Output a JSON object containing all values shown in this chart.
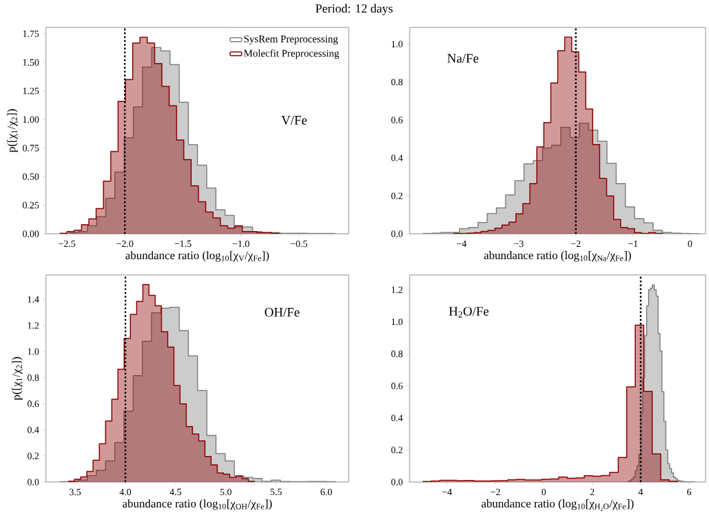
{
  "chart_data": [
    {
      "type": "step",
      "title": "Period: 12 days",
      "xlabel": "abundance ratio (log$_{10}$[χ$_{V}$/χ$_{Fe}$])",
      "ylabel": "p([χ$_{1}$/χ$_{2}$])",
      "xlim": [
        -2.681,
        -0.071
      ],
      "ylim": [
        0,
        1.806
      ],
      "xticks": [
        {
          "value": -2.5,
          "label": "−2.5"
        },
        {
          "value": -2,
          "label": "−2.0"
        },
        {
          "value": -1.5,
          "label": "−1.5"
        },
        {
          "value": -1,
          "label": "−1.0"
        },
        {
          "value": -0.5,
          "label": "−0.5"
        }
      ],
      "yticks": [
        {
          "value": 0,
          "label": "0.00"
        },
        {
          "value": 0.25,
          "label": "0.25"
        },
        {
          "value": 0.5,
          "label": "0.50"
        },
        {
          "value": 0.75,
          "label": "0.75"
        },
        {
          "value": 1,
          "label": "1.00"
        },
        {
          "value": 1.25,
          "label": "1.25"
        },
        {
          "value": 1.5,
          "label": "1.50"
        },
        {
          "value": 1.75,
          "label": "1.75"
        }
      ],
      "legend": "top right",
      "series": [
        {
          "name": "SysRem Preprocessing",
          "color": "#808080",
          "x": [
            -2.481,
            -2.402,
            -2.323,
            -2.244,
            -2.165,
            -2.086,
            -2.006,
            -1.927,
            -1.848,
            -1.769,
            -1.69,
            -1.611,
            -1.532,
            -1.453,
            -1.374,
            -1.295,
            -1.216,
            -1.137,
            -1.058,
            -0.979,
            -0.9,
            -0.82,
            -0.741,
            -0.662,
            -0.583,
            -0.504,
            -0.425,
            -0.346,
            -0.267,
            -0.188
          ],
          "values": [
            0.01,
            0.02,
            0.07,
            0.15,
            0.31,
            0.54,
            0.84,
            1.11,
            1.46,
            1.63,
            1.6,
            1.48,
            1.15,
            0.78,
            0.6,
            0.4,
            0.21,
            0.16,
            0.06,
            0.06,
            0.02,
            0.01,
            0.01,
            0.005,
            0.005,
            0.005,
            0.003,
            0.003,
            0.003,
            0
          ]
        },
        {
          "name": "Molecfit Preprocessing",
          "color": "#8b0000",
          "x": [
            -2.563,
            -2.5,
            -2.437,
            -2.374,
            -2.311,
            -2.248,
            -2.185,
            -2.122,
            -2.059,
            -1.996,
            -1.933,
            -1.87,
            -1.807,
            -1.744,
            -1.681,
            -1.618,
            -1.555,
            -1.492,
            -1.429,
            -1.366,
            -1.303,
            -1.24,
            -1.177,
            -1.114,
            -1.051,
            -0.988,
            -0.925,
            -0.862,
            -0.799,
            -0.736,
            -0.673
          ],
          "values": [
            0.004,
            0.02,
            0.032,
            0.08,
            0.13,
            0.22,
            0.46,
            0.72,
            1.16,
            1.35,
            1.67,
            1.72,
            1.67,
            1.49,
            1.29,
            1.12,
            0.82,
            0.65,
            0.42,
            0.28,
            0.19,
            0.14,
            0.07,
            0.05,
            0.07,
            0.02,
            0.02,
            0.01,
            0.01,
            0.004,
            0
          ]
        }
      ],
      "ref_lines": [
        {
          "axis": "x",
          "value": -2,
          "color": "#000000",
          "line_style": "dotted"
        }
      ],
      "annotations": [
        "V/Fe"
      ]
    },
    {
      "type": "step",
      "xlabel": "abundance ratio (log$_{10}$[χ$_{Na}$/χ$_{Fe}$])",
      "xlim": [
        -4.908,
        0.272
      ],
      "ylim": [
        0,
        1.088
      ],
      "xticks": [
        {
          "value": -4,
          "label": "−4"
        },
        {
          "value": -3,
          "label": "−3"
        },
        {
          "value": -2,
          "label": "−2"
        },
        {
          "value": -1,
          "label": "−1"
        },
        {
          "value": 0,
          "label": "0"
        }
      ],
      "yticks": [
        {
          "value": 0,
          "label": "0.0"
        },
        {
          "value": 0.2,
          "label": "0.2"
        },
        {
          "value": 0.4,
          "label": "0.4"
        },
        {
          "value": 0.6,
          "label": "0.6"
        },
        {
          "value": 0.8,
          "label": "0.8"
        },
        {
          "value": 1,
          "label": "1.0"
        }
      ],
      "series": [
        {
          "color": "#808080",
          "x": [
            -4.68,
            -4.519,
            -4.357,
            -4.196,
            -4.035,
            -3.874,
            -3.712,
            -3.551,
            -3.39,
            -3.228,
            -3.067,
            -2.906,
            -2.744,
            -2.583,
            -2.422,
            -2.261,
            -2.099,
            -1.938,
            -1.777,
            -1.615,
            -1.454,
            -1.293,
            -1.131,
            -0.97,
            -0.809,
            -0.648,
            -0.486,
            -0.325,
            -0.164,
            -0.002,
            0.159
          ],
          "values": [
            0.002,
            0.004,
            0.007,
            0.007,
            0.027,
            0.033,
            0.06,
            0.107,
            0.136,
            0.205,
            0.28,
            0.369,
            0.386,
            0.453,
            0.467,
            0.561,
            0.508,
            0.584,
            0.547,
            0.488,
            0.371,
            0.265,
            0.142,
            0.08,
            0.058,
            0.019,
            0.007,
            0.004,
            0.002,
            0.001,
            0
          ]
        },
        {
          "color": "#8b0000",
          "x": [
            -4.148,
            -4.026,
            -3.904,
            -3.781,
            -3.659,
            -3.537,
            -3.415,
            -3.293,
            -3.17,
            -3.048,
            -2.926,
            -2.804,
            -2.682,
            -2.559,
            -2.437,
            -2.315,
            -2.193,
            -2.071,
            -1.948,
            -1.826,
            -1.704,
            -1.582,
            -1.46,
            -1.337,
            -1.215,
            -1.093,
            -0.971,
            -0.849,
            -0.726,
            -0.604,
            -0.482
          ],
          "values": [
            0.002,
            0.002,
            0.004,
            0.006,
            0.013,
            0.018,
            0.03,
            0.046,
            0.061,
            0.106,
            0.159,
            0.265,
            0.458,
            0.586,
            0.795,
            0.965,
            1.037,
            0.96,
            0.853,
            0.658,
            0.471,
            0.292,
            0.2,
            0.076,
            0.033,
            0.027,
            0.006,
            0.002,
            0.006,
            0.002,
            0
          ]
        }
      ],
      "ref_lines": [
        {
          "axis": "x",
          "value": -2,
          "color": "#000000",
          "line_style": "dotted"
        }
      ],
      "annotations": [
        "Na/Fe"
      ]
    },
    {
      "type": "step",
      "xlabel": "abundance ratio (log$_{10}$[χ$_{OH}$/χ$_{Fe}$])",
      "ylabel": "p([χ$_{1}$/χ$_{2}$])",
      "xlim": [
        3.209,
        6.223
      ],
      "ylim": [
        0,
        1.588
      ],
      "xticks": [
        {
          "value": 3.5,
          "label": "3.5"
        },
        {
          "value": 4,
          "label": "4.0"
        },
        {
          "value": 4.5,
          "label": "4.5"
        },
        {
          "value": 5,
          "label": "5.0"
        },
        {
          "value": 5.5,
          "label": "5.5"
        },
        {
          "value": 6,
          "label": "6.0"
        }
      ],
      "yticks": [
        {
          "value": 0,
          "label": "0.0"
        },
        {
          "value": 0.2,
          "label": "0.2"
        },
        {
          "value": 0.4,
          "label": "0.4"
        },
        {
          "value": 0.6,
          "label": "0.6"
        },
        {
          "value": 0.8,
          "label": "0.8"
        },
        {
          "value": 1,
          "label": "1.0"
        },
        {
          "value": 1.2,
          "label": "1.2"
        },
        {
          "value": 1.4,
          "label": "1.4"
        }
      ],
      "series": [
        {
          "color": "#808080",
          "x": [
            3.345,
            3.437,
            3.528,
            3.62,
            3.711,
            3.803,
            3.895,
            3.986,
            4.078,
            4.169,
            4.261,
            4.353,
            4.444,
            4.536,
            4.627,
            4.719,
            4.811,
            4.902,
            4.994,
            5.085,
            5.177,
            5.269,
            5.36,
            5.452,
            5.543,
            5.635,
            5.727,
            5.818,
            5.91,
            6.001,
            6.093
          ],
          "values": [
            0.002,
            0.005,
            0.014,
            0.049,
            0.091,
            0.161,
            0.302,
            0.544,
            0.816,
            1.079,
            1.298,
            1.333,
            1.339,
            1.161,
            0.968,
            0.702,
            0.358,
            0.218,
            0.161,
            0.049,
            0.035,
            0.028,
            0.005,
            0.014,
            0.004,
            0.002,
            0.002,
            0.004,
            0.004,
            0.002,
            0
          ]
        },
        {
          "color": "#8b0000",
          "x": [
            3.432,
            3.494,
            3.556,
            3.617,
            3.679,
            3.741,
            3.803,
            3.865,
            3.926,
            3.988,
            4.05,
            4.112,
            4.174,
            4.235,
            4.297,
            4.359,
            4.421,
            4.483,
            4.544,
            4.606,
            4.668,
            4.73,
            4.792,
            4.853,
            4.915,
            4.977,
            5.039,
            5.101,
            5.162,
            5.224,
            5.286
          ],
          "values": [
            0.007,
            0.021,
            0.04,
            0.082,
            0.167,
            0.293,
            0.468,
            0.635,
            0.865,
            1.102,
            1.286,
            1.386,
            1.514,
            1.432,
            1.351,
            1.153,
            1.035,
            0.74,
            0.6,
            0.425,
            0.368,
            0.316,
            0.196,
            0.132,
            0.07,
            0.06,
            0.035,
            0.044,
            0.026,
            0.005,
            0
          ]
        }
      ],
      "ref_lines": [
        {
          "axis": "x",
          "value": 4,
          "color": "#000000",
          "line_style": "dotted"
        }
      ],
      "annotations": [
        "OH/Fe"
      ]
    },
    {
      "type": "step",
      "xlabel": "abundance ratio (log$_{10}$[χ$_{H₂O}$/χ$_{Fe}$])",
      "xlim": [
        -5.54,
        6.68
      ],
      "ylim": [
        0,
        1.293
      ],
      "xticks": [
        {
          "value": -4,
          "label": "−4"
        },
        {
          "value": -2,
          "label": "−2"
        },
        {
          "value": 0,
          "label": "0"
        },
        {
          "value": 2,
          "label": "2"
        },
        {
          "value": 4,
          "label": "4"
        },
        {
          "value": 6,
          "label": "6"
        }
      ],
      "yticks": [
        {
          "value": 0,
          "label": "0.0"
        },
        {
          "value": 0.2,
          "label": "0.2"
        },
        {
          "value": 0.4,
          "label": "0.4"
        },
        {
          "value": 0.6,
          "label": "0.6"
        },
        {
          "value": 0.8,
          "label": "0.8"
        },
        {
          "value": 1,
          "label": "1.0"
        },
        {
          "value": 1.2,
          "label": "1.2"
        }
      ],
      "series": [
        {
          "color": "#808080",
          "x": [
            3.453,
            3.532,
            3.611,
            3.691,
            3.77,
            3.849,
            3.928,
            4.007,
            4.087,
            4.166,
            4.245,
            4.324,
            4.403,
            4.483,
            4.562,
            4.641,
            4.72,
            4.799,
            4.879,
            4.958,
            5.037,
            5.116,
            5.195,
            5.275,
            5.354,
            5.433,
            5.512,
            5.591,
            5.671,
            5.75,
            5.829,
            5.908,
            5.987,
            6.067,
            6.146,
            6.225
          ],
          "values": [
            0.003,
            0.007,
            0.017,
            0.031,
            0.071,
            0.103,
            0.171,
            0.429,
            0.65,
            0.914,
            1.1,
            1.2,
            1.21,
            1.231,
            1.2,
            1.16,
            0.926,
            0.819,
            0.564,
            0.379,
            0.2,
            0.114,
            0.083,
            0.057,
            0.031,
            0.02,
            0.011,
            0.007,
            0.004,
            0.003,
            0.001,
            0.001,
            0.001,
            0.001,
            0.001,
            0
          ]
        },
        {
          "color": "#8b0000",
          "x": [
            -5.0,
            -4.649,
            -4.298,
            -3.947,
            -3.596,
            -3.245,
            -2.894,
            -2.543,
            -2.192,
            -1.841,
            -1.49,
            -1.139,
            -0.788,
            -0.437,
            -0.086,
            0.265,
            0.616,
            0.967,
            1.318,
            1.669,
            2.02,
            2.371,
            2.722,
            3.073,
            3.424,
            3.775,
            4.126,
            4.477,
            4.828,
            5.179,
            5.53
          ],
          "values": [
            0.003,
            0.006,
            0.011,
            0.011,
            0.009,
            0.01,
            0.006,
            0.006,
            0.007,
            0.009,
            0.014,
            0.016,
            0.013,
            0.013,
            0.017,
            0.019,
            0.031,
            0.023,
            0.026,
            0.04,
            0.036,
            0.041,
            0.06,
            0.153,
            0.594,
            0.979,
            0.566,
            0.176,
            0.014,
            0.004,
            0
          ]
        }
      ],
      "ref_lines": [
        {
          "axis": "x",
          "value": 4,
          "color": "#000000",
          "line_style": "dotted"
        }
      ],
      "annotations": [
        "H$_{2}$O/Fe"
      ]
    }
  ]
}
